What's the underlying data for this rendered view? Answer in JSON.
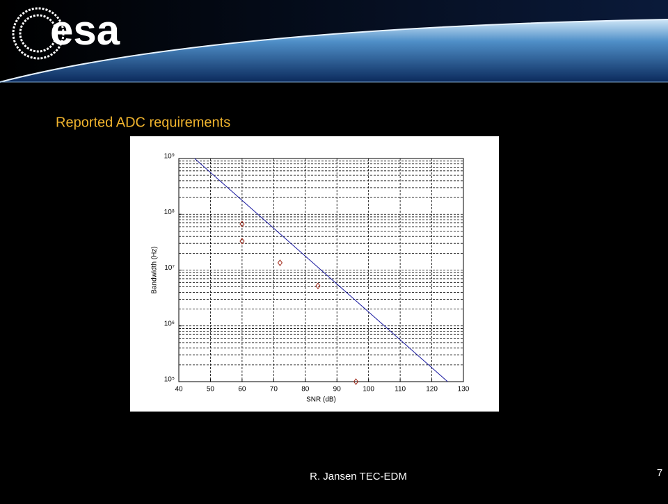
{
  "header": {
    "logo": "esa"
  },
  "slide_title": "Reported ADC requirements",
  "chart_data": {
    "type": "scatter",
    "xlabel": "SNR (dB)",
    "ylabel": "Bandwidth (Hz)",
    "xlim": [
      40,
      130
    ],
    "xticks": [
      40,
      50,
      60,
      70,
      80,
      90,
      100,
      110,
      120,
      130
    ],
    "ylim": [
      100000,
      1000000000
    ],
    "yscale": "log",
    "yticks": [
      {
        "value": 100000,
        "label": "10⁵"
      },
      {
        "value": 1000000,
        "label": "10⁶"
      },
      {
        "value": 10000000,
        "label": "10⁷"
      },
      {
        "value": 100000000,
        "label": "10⁸"
      },
      {
        "value": 1000000000,
        "label": "10⁹"
      }
    ],
    "grid": true,
    "series": [
      {
        "type": "line",
        "color": "#1a1aa0",
        "x": [
          45,
          125
        ],
        "values": [
          1000000000,
          100000
        ]
      },
      {
        "type": "scatter",
        "marker": "diamond",
        "color": "#a02818",
        "x": [
          60,
          60,
          72,
          84,
          96
        ],
        "values": [
          67000000,
          33000000,
          13500000,
          5200000,
          100000
        ]
      }
    ]
  },
  "footer": {
    "author": "R. Jansen TEC-EDM",
    "page": "7"
  }
}
